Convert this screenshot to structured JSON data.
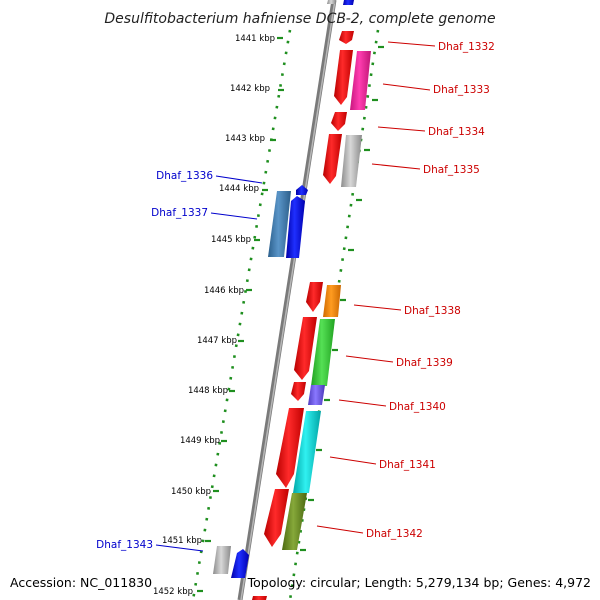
{
  "title": "Desulfitobacterium hafniense DCB-2, complete genome",
  "footer": {
    "accession": "Accession: NC_011830",
    "summary": "Topology: circular; Length: 5,279,134 bp; Genes: 4,972"
  },
  "colors": {
    "backbone": "#7a7a7a",
    "dotted_track": "#1f8f1f",
    "tick": "#1f8f1f",
    "plus_label": "#cc0000",
    "minus_label": "#0000cc"
  },
  "scale": {
    "unit": "kbp",
    "ticks": [
      {
        "kbp": 1441,
        "label": "1441 kbp"
      },
      {
        "kbp": 1442,
        "label": "1442 kbp"
      },
      {
        "kbp": 1443,
        "label": "1443 kbp"
      },
      {
        "kbp": 1444,
        "label": "1444 kbp"
      },
      {
        "kbp": 1445,
        "label": "1445 kbp"
      },
      {
        "kbp": 1446,
        "label": "1446 kbp"
      },
      {
        "kbp": 1447,
        "label": "1447 kbp"
      },
      {
        "kbp": 1448,
        "label": "1448 kbp"
      },
      {
        "kbp": 1449,
        "label": "1449 kbp"
      },
      {
        "kbp": 1450,
        "label": "1450 kbp"
      },
      {
        "kbp": 1451,
        "label": "1451 kbp"
      },
      {
        "kbp": 1452,
        "label": "1452 kbp"
      }
    ]
  },
  "labeled_genes": [
    {
      "name": "Dhaf_1332",
      "strand": "+"
    },
    {
      "name": "Dhaf_1333",
      "strand": "+"
    },
    {
      "name": "Dhaf_1334",
      "strand": "+"
    },
    {
      "name": "Dhaf_1335",
      "strand": "+"
    },
    {
      "name": "Dhaf_1336",
      "strand": "-"
    },
    {
      "name": "Dhaf_1337",
      "strand": "-"
    },
    {
      "name": "Dhaf_1338",
      "strand": "+"
    },
    {
      "name": "Dhaf_1339",
      "strand": "+"
    },
    {
      "name": "Dhaf_1340",
      "strand": "+"
    },
    {
      "name": "Dhaf_1341",
      "strand": "+"
    },
    {
      "name": "Dhaf_1342",
      "strand": "+"
    },
    {
      "name": "Dhaf_1343",
      "strand": "-"
    }
  ]
}
